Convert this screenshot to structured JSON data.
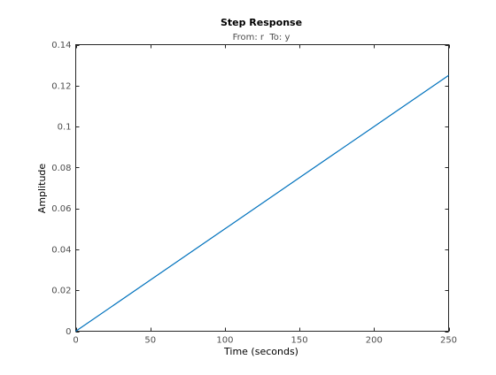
{
  "chart_data": {
    "type": "line",
    "title": "Step Response",
    "subtitle": "From: r  To: y",
    "xlabel": "Time (seconds)",
    "ylabel": "Amplitude",
    "xlim": [
      0,
      250
    ],
    "ylim": [
      0,
      0.14
    ],
    "xticks": [
      0,
      50,
      100,
      150,
      200,
      250
    ],
    "yticks": [
      0,
      0.02,
      0.04,
      0.06,
      0.08,
      0.1,
      0.12,
      0.14
    ],
    "xtick_labels": [
      "0",
      "50",
      "100",
      "150",
      "200",
      "250"
    ],
    "ytick_labels": [
      "0",
      "0.02",
      "0.04",
      "0.06",
      "0.08",
      "0.1",
      "0.12",
      "0.14"
    ],
    "grid": false,
    "series": [
      {
        "x": [
          0,
          50,
          100,
          150,
          200,
          250
        ],
        "y": [
          0,
          0.025,
          0.05,
          0.075,
          0.1,
          0.125
        ],
        "color": "#0072BD"
      }
    ],
    "colors": {
      "axis": "#262626",
      "tick_text": "#4d4d4d"
    }
  }
}
